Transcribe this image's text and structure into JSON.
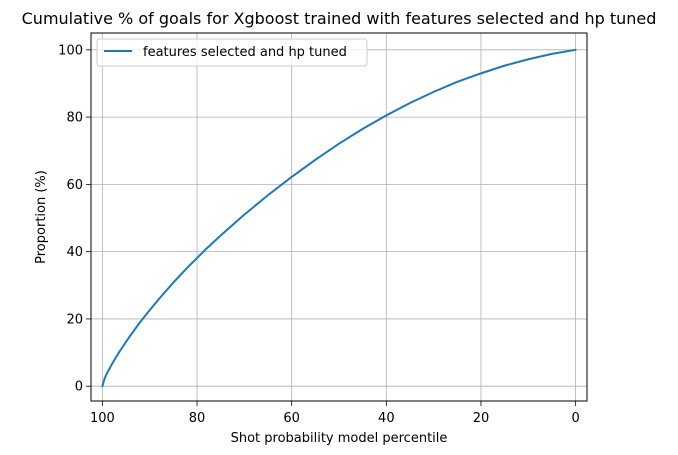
{
  "chart_data": {
    "type": "line",
    "title": "Cumulative % of goals for Xgboost trained with features selected and hp tuned",
    "xlabel": "Shot probability model percentile",
    "ylabel": "Proportion (%)",
    "xlim": [
      102.4,
      -2.4
    ],
    "x_inverted": true,
    "ylim": [
      -4.4,
      105
    ],
    "x_ticks": [
      100,
      80,
      60,
      40,
      20,
      0
    ],
    "y_ticks": [
      0,
      20,
      40,
      60,
      80,
      100
    ],
    "grid": true,
    "legend_position": "upper-left",
    "series": [
      {
        "name": "features selected and hp tuned",
        "color": "#1f77b4",
        "x": [
          100,
          99.5,
          99,
          98,
          97,
          96,
          95,
          94,
          92,
          90,
          88,
          85,
          82,
          80,
          78,
          75,
          70,
          65,
          60,
          55,
          50,
          45,
          40,
          35,
          30,
          25,
          20,
          15,
          10,
          5,
          0
        ],
        "y": [
          0,
          2.4,
          3.9,
          6.5,
          8.9,
          11.1,
          13.2,
          15.2,
          19.1,
          22.6,
          26.0,
          30.8,
          35.3,
          38.1,
          40.9,
          44.8,
          51.0,
          56.8,
          62.2,
          67.3,
          72.1,
          76.5,
          80.5,
          84.2,
          87.5,
          90.5,
          93.0,
          95.3,
          97.2,
          98.8,
          100
        ]
      }
    ]
  }
}
